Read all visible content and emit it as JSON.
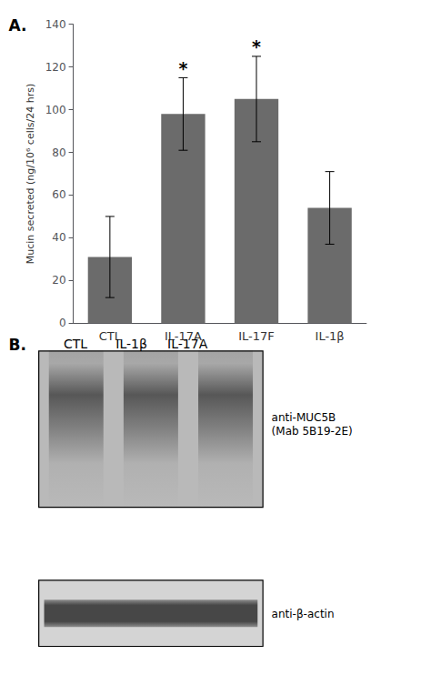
{
  "chart_data": {
    "type": "bar",
    "categories": [
      "CTL",
      "IL-17A",
      "IL-17F",
      "IL-1β"
    ],
    "values": [
      31,
      98,
      105,
      54
    ],
    "errors": [
      19,
      17,
      20,
      17
    ],
    "significance_marks": [
      null,
      "*",
      "*",
      null
    ],
    "color": "#6b6b6b",
    "ylabel": "Mucin secreted (ng/10⁶ cells/24 hrs)",
    "ylim": [
      0,
      140
    ],
    "yticks": [
      0,
      20,
      40,
      60,
      80,
      100,
      120,
      140
    ],
    "grid": false,
    "annotations": {
      "panel_A_label": "A.",
      "panel_B_label": "B.",
      "lane_labels": [
        "CTL",
        "IL-1β",
        "IL-17A"
      ],
      "muc5b_label": "anti-MUC5B\n(Mab 5B19-2E)",
      "actin_label": "anti-β-actin"
    }
  }
}
